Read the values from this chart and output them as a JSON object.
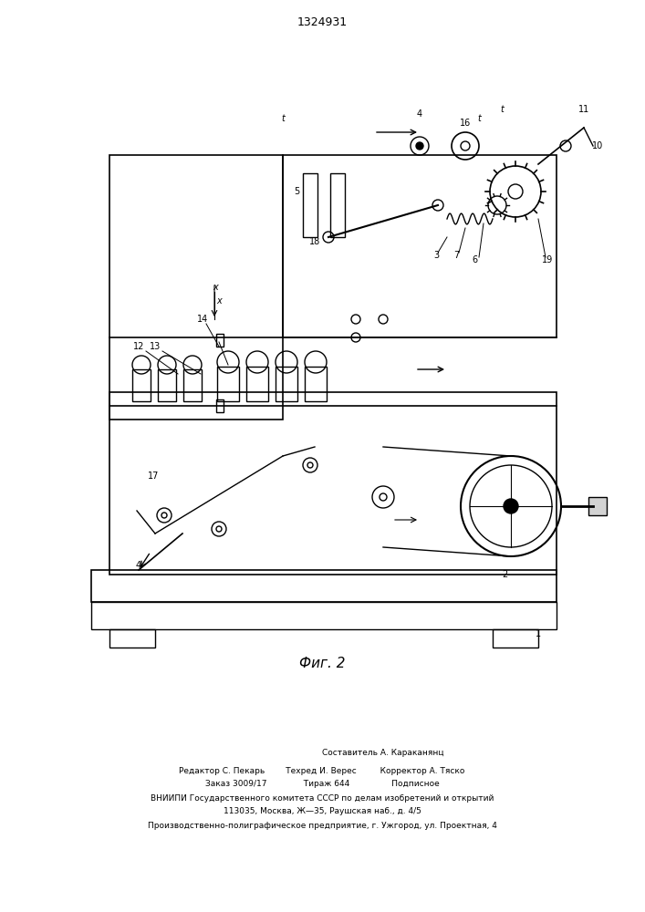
{
  "title": "1324931",
  "fig_caption": "Фиг. 2",
  "bg_color": "#ffffff",
  "line_color": "#000000",
  "footer_lines": [
    "Составитель А. Караканянц",
    "Редактор С. Пекарь        Техред И. Верес         Корректор А. Тяско",
    "Заказ 3009/17              Тираж 644                Подписное",
    "ВНИИПИ Государственного комитета СССР по делам изобретений и открытий",
    "113035, Москва, Ж—35, Раушская наб., д. 4/5",
    "Производственно-полиграфическое предприятие, г. Ужгород, ул. Проектная, 4"
  ]
}
